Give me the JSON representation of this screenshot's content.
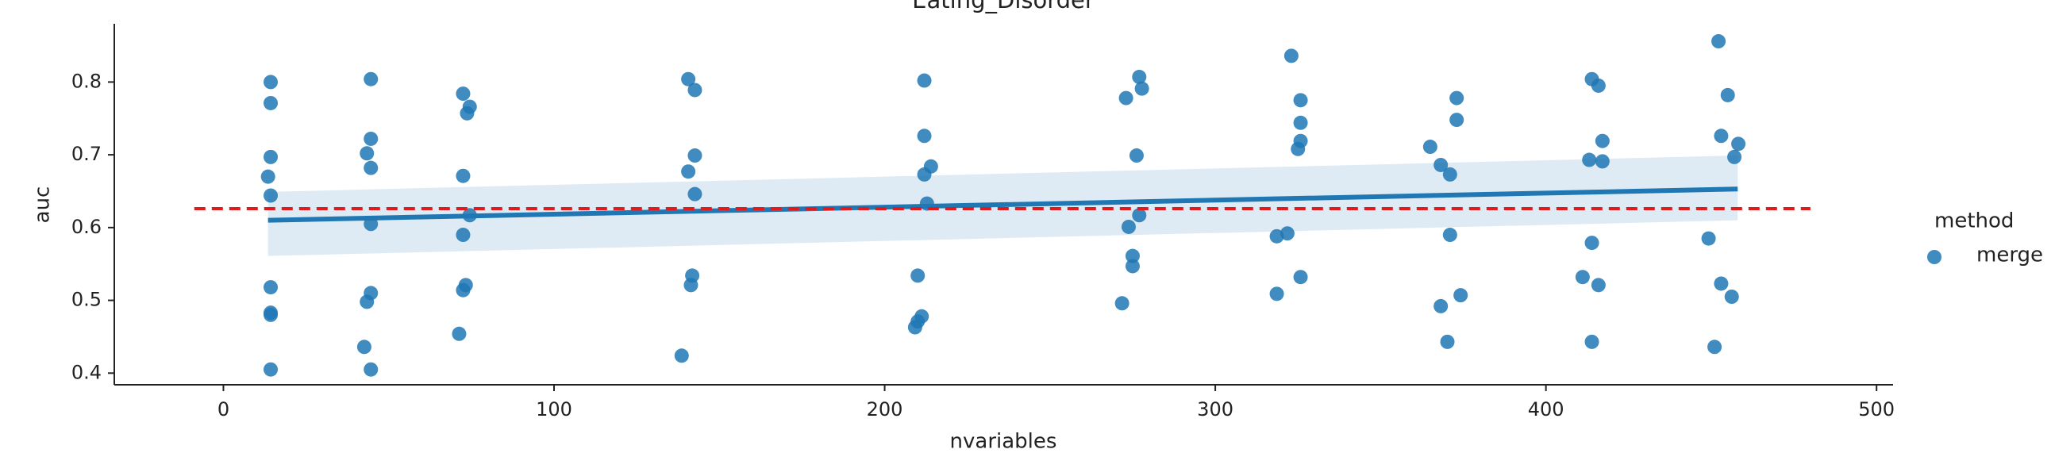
{
  "chart_data": {
    "type": "scatter",
    "title": "Eating_Disorder",
    "x_label": "nvariables",
    "y_label": "auc",
    "xlim": [
      -33,
      505
    ],
    "ylim": [
      0.384,
      0.88
    ],
    "xticks": [
      0,
      100,
      200,
      300,
      400,
      500
    ],
    "yticks": [
      0.4,
      0.5,
      0.6,
      0.7,
      0.8
    ],
    "legend_title": "method",
    "legend_position": "right",
    "series": [
      {
        "name": "merge",
        "color": "#1f77b4",
        "x": [
          14.3,
          14.3,
          14.3,
          13.5,
          14.3,
          14.3,
          14.3,
          14.3,
          14.3,
          44.6,
          44.6,
          43.4,
          44.6,
          44.6,
          44.6,
          43.4,
          42.6,
          44.6,
          72.5,
          73.7,
          74.5,
          72.5,
          74.5,
          72.5,
          73.3,
          72.5,
          71.3,
          140.6,
          142.6,
          142.6,
          140.6,
          142.6,
          141.8,
          141.4,
          138.6,
          212,
          212,
          214,
          212,
          212.8,
          210,
          211.2,
          210,
          209.2,
          277,
          277.8,
          273,
          276.2,
          277,
          273.8,
          275,
          275,
          271.8,
          323,
          325.8,
          325.8,
          325.8,
          325,
          321.8,
          318.6,
          325.8,
          318.6,
          373,
          373,
          365,
          368.2,
          371,
          371,
          374.2,
          368.2,
          370.2,
          413.9,
          415.9,
          417.1,
          413.1,
          417.1,
          413.9,
          411.1,
          415.9,
          413.9,
          452.2,
          455,
          453,
          458.2,
          457,
          449.2,
          453,
          456.2,
          451
        ],
        "values": [
          0.8,
          0.771,
          0.697,
          0.67,
          0.644,
          0.518,
          0.483,
          0.48,
          0.405,
          0.804,
          0.722,
          0.702,
          0.682,
          0.605,
          0.51,
          0.498,
          0.436,
          0.405,
          0.784,
          0.757,
          0.766,
          0.671,
          0.617,
          0.59,
          0.521,
          0.514,
          0.454,
          0.804,
          0.789,
          0.699,
          0.677,
          0.646,
          0.534,
          0.521,
          0.424,
          0.802,
          0.726,
          0.684,
          0.673,
          0.633,
          0.534,
          0.478,
          0.471,
          0.463,
          0.807,
          0.791,
          0.778,
          0.699,
          0.617,
          0.601,
          0.561,
          0.547,
          0.496,
          0.836,
          0.775,
          0.744,
          0.719,
          0.708,
          0.592,
          0.588,
          0.532,
          0.509,
          0.778,
          0.748,
          0.711,
          0.686,
          0.673,
          0.59,
          0.507,
          0.492,
          0.443,
          0.804,
          0.795,
          0.719,
          0.693,
          0.691,
          0.579,
          0.532,
          0.521,
          0.443,
          0.856,
          0.782,
          0.726,
          0.715,
          0.697,
          0.585,
          0.523,
          0.505,
          0.436
        ]
      }
    ],
    "regression": {
      "color": "#1f77b4",
      "x": [
        13.5,
        458
      ],
      "values": [
        0.61,
        0.653
      ],
      "ci_low": [
        0.561,
        0.61
      ],
      "ci_high": [
        0.649,
        0.699
      ]
    },
    "reference_line": {
      "color": "#e31a1c",
      "x": [
        -8.8,
        480
      ],
      "values": [
        0.626,
        0.626
      ]
    }
  }
}
